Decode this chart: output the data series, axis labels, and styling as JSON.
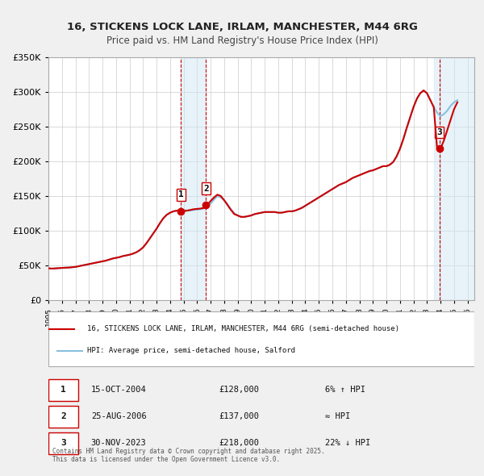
{
  "title": "16, STICKENS LOCK LANE, IRLAM, MANCHESTER, M44 6RG",
  "subtitle": "Price paid vs. HM Land Registry's House Price Index (HPI)",
  "bg_color": "#f0f0f0",
  "plot_bg_color": "#ffffff",
  "grid_color": "#cccccc",
  "sale_color": "#cc0000",
  "hpi_color": "#87bfdf",
  "ylim": [
    0,
    350000
  ],
  "xlim_start": 1995.0,
  "xlim_end": 2026.5,
  "sales": [
    {
      "year": 2004.79,
      "price": 128000,
      "label": "1"
    },
    {
      "year": 2006.65,
      "price": 137000,
      "label": "2"
    },
    {
      "year": 2023.92,
      "price": 218000,
      "label": "3"
    }
  ],
  "vline_color": "#cc0000",
  "shade_color": "#d0e8f5",
  "legend_sale_label": "16, STICKENS LOCK LANE, IRLAM, MANCHESTER, M44 6RG (semi-detached house)",
  "legend_hpi_label": "HPI: Average price, semi-detached house, Salford",
  "table_rows": [
    {
      "num": "1",
      "date": "15-OCT-2004",
      "price": "£128,000",
      "note": "6% ↑ HPI"
    },
    {
      "num": "2",
      "date": "25-AUG-2006",
      "price": "£137,000",
      "note": "≈ HPI"
    },
    {
      "num": "3",
      "date": "30-NOV-2023",
      "price": "£218,000",
      "note": "22% ↓ HPI"
    }
  ],
  "footnote": "Contains HM Land Registry data © Crown copyright and database right 2025.\nThis data is licensed under the Open Government Licence v3.0.",
  "hpi_data": {
    "years": [
      1995,
      1995.25,
      1995.5,
      1995.75,
      1996,
      1996.25,
      1996.5,
      1996.75,
      1997,
      1997.25,
      1997.5,
      1997.75,
      1998,
      1998.25,
      1998.5,
      1998.75,
      1999,
      1999.25,
      1999.5,
      1999.75,
      2000,
      2000.25,
      2000.5,
      2000.75,
      2001,
      2001.25,
      2001.5,
      2001.75,
      2002,
      2002.25,
      2002.5,
      2002.75,
      2003,
      2003.25,
      2003.5,
      2003.75,
      2004,
      2004.25,
      2004.5,
      2004.75,
      2005,
      2005.25,
      2005.5,
      2005.75,
      2006,
      2006.25,
      2006.5,
      2006.75,
      2007,
      2007.25,
      2007.5,
      2007.75,
      2008,
      2008.25,
      2008.5,
      2008.75,
      2009,
      2009.25,
      2009.5,
      2009.75,
      2010,
      2010.25,
      2010.5,
      2010.75,
      2011,
      2011.25,
      2011.5,
      2011.75,
      2012,
      2012.25,
      2012.5,
      2012.75,
      2013,
      2013.25,
      2013.5,
      2013.75,
      2014,
      2014.25,
      2014.5,
      2014.75,
      2015,
      2015.25,
      2015.5,
      2015.75,
      2016,
      2016.25,
      2016.5,
      2016.75,
      2017,
      2017.25,
      2017.5,
      2017.75,
      2018,
      2018.25,
      2018.5,
      2018.75,
      2019,
      2019.25,
      2019.5,
      2019.75,
      2020,
      2020.25,
      2020.5,
      2020.75,
      2021,
      2021.25,
      2021.5,
      2021.75,
      2022,
      2022.25,
      2022.5,
      2022.75,
      2023,
      2023.25,
      2023.5,
      2023.75,
      2024,
      2024.25,
      2024.5,
      2024.75,
      2025,
      2025.25
    ],
    "values": [
      46000,
      45500,
      45800,
      46200,
      46500,
      46800,
      47000,
      47500,
      48000,
      49000,
      50000,
      51000,
      52000,
      53000,
      54000,
      55000,
      56000,
      57000,
      58500,
      60000,
      61000,
      62000,
      63500,
      64500,
      65500,
      67000,
      69000,
      72000,
      76000,
      82000,
      89000,
      96000,
      103000,
      111000,
      118000,
      123000,
      126000,
      128000,
      129000,
      130000,
      130000,
      129000,
      129000,
      130000,
      130500,
      131000,
      132000,
      135000,
      139000,
      145000,
      150000,
      148000,
      144000,
      138000,
      131000,
      125000,
      122000,
      120000,
      120000,
      121000,
      122000,
      124000,
      125000,
      126000,
      127000,
      127000,
      127000,
      127000,
      126000,
      126000,
      127000,
      128000,
      128000,
      129000,
      131000,
      133000,
      136000,
      139000,
      142000,
      145000,
      148000,
      151000,
      154000,
      157000,
      160000,
      163000,
      166000,
      168000,
      170000,
      173000,
      176000,
      178000,
      180000,
      182000,
      184000,
      186000,
      187000,
      189000,
      191000,
      193000,
      193000,
      195000,
      199000,
      207000,
      218000,
      232000,
      248000,
      263000,
      278000,
      290000,
      298000,
      302000,
      298000,
      288000,
      278000,
      270000,
      265000,
      268000,
      273000,
      280000,
      285000,
      288000
    ]
  },
  "sale_hpi_data": {
    "years": [
      1995,
      1995.25,
      1995.5,
      1995.75,
      1996,
      1996.25,
      1996.5,
      1996.75,
      1997,
      1997.25,
      1997.5,
      1997.75,
      1998,
      1998.25,
      1998.5,
      1998.75,
      1999,
      1999.25,
      1999.5,
      1999.75,
      2000,
      2000.25,
      2000.5,
      2000.75,
      2001,
      2001.25,
      2001.5,
      2001.75,
      2002,
      2002.25,
      2002.5,
      2002.75,
      2003,
      2003.25,
      2003.5,
      2003.75,
      2004,
      2004.25,
      2004.5,
      2004.75,
      2005,
      2005.25,
      2005.5,
      2005.75,
      2006,
      2006.25,
      2006.5,
      2006.75,
      2007,
      2007.25,
      2007.5,
      2007.75,
      2008,
      2008.25,
      2008.5,
      2008.75,
      2009,
      2009.25,
      2009.5,
      2009.75,
      2010,
      2010.25,
      2010.5,
      2010.75,
      2011,
      2011.25,
      2011.5,
      2011.75,
      2012,
      2012.25,
      2012.5,
      2012.75,
      2013,
      2013.25,
      2013.5,
      2013.75,
      2014,
      2014.25,
      2014.5,
      2014.75,
      2015,
      2015.25,
      2015.5,
      2015.75,
      2016,
      2016.25,
      2016.5,
      2016.75,
      2017,
      2017.25,
      2017.5,
      2017.75,
      2018,
      2018.25,
      2018.5,
      2018.75,
      2019,
      2019.25,
      2019.5,
      2019.75,
      2020,
      2020.25,
      2020.5,
      2020.75,
      2021,
      2021.25,
      2021.5,
      2021.75,
      2022,
      2022.25,
      2022.5,
      2022.75,
      2023,
      2023.25,
      2023.5,
      2023.75,
      2024,
      2024.25,
      2024.5,
      2024.75,
      2025,
      2025.25
    ],
    "values": [
      46000,
      45500,
      45800,
      46200,
      46500,
      46800,
      47000,
      47500,
      48000,
      49000,
      50000,
      51000,
      52000,
      53000,
      54000,
      55000,
      56000,
      57000,
      58500,
      60000,
      61000,
      62000,
      63500,
      64500,
      65500,
      67000,
      69000,
      72000,
      76000,
      82000,
      89000,
      96000,
      103000,
      111000,
      118000,
      123000,
      126000,
      128000,
      129000,
      128000,
      128000,
      129000,
      130000,
      131000,
      131500,
      132000,
      133000,
      137000,
      143000,
      148000,
      152000,
      150000,
      144000,
      137000,
      130000,
      124000,
      122000,
      120000,
      120000,
      121000,
      122000,
      124000,
      125000,
      126000,
      127000,
      127000,
      127000,
      127000,
      126000,
      126000,
      127000,
      128000,
      128000,
      129000,
      131000,
      133000,
      136000,
      139000,
      142000,
      145000,
      148000,
      151000,
      154000,
      157000,
      160000,
      163000,
      166000,
      168000,
      170000,
      173000,
      176000,
      178000,
      180000,
      182000,
      184000,
      186000,
      187000,
      189000,
      191000,
      193000,
      193000,
      195000,
      199000,
      207000,
      218000,
      232000,
      248000,
      263000,
      278000,
      290000,
      298000,
      302000,
      298000,
      288000,
      278000,
      218000,
      218000,
      230000,
      245000,
      260000,
      275000,
      285000
    ]
  }
}
